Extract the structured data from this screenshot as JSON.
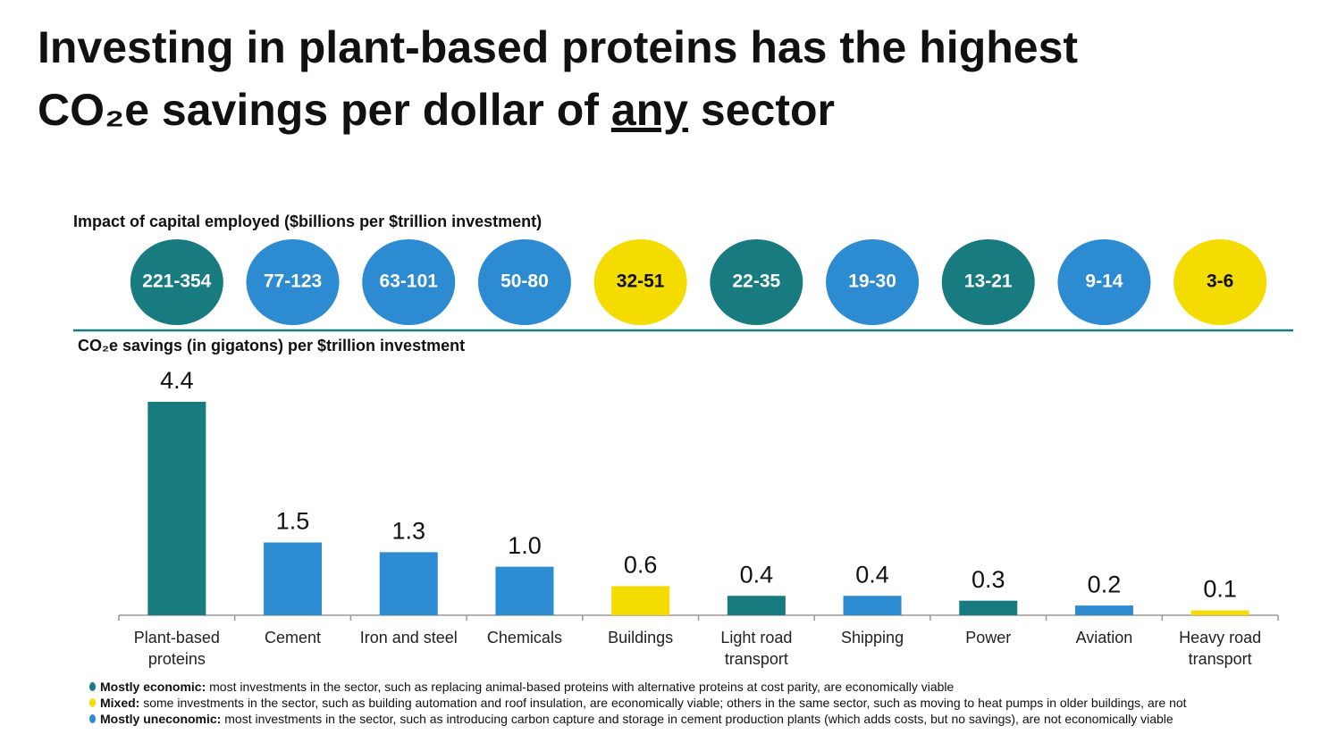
{
  "chart_data": {
    "type": "bar",
    "title": "Investing in plant-based proteins has the highest",
    "title_2": "CO₂e savings per dollar of ",
    "title_emphasis": "any",
    "title_end": " sector",
    "capital_label": "Impact of capital employed ($billions per $trillion investment)",
    "savings_label": "CO₂e savings (in gigatons) per $trillion investment",
    "categories": [
      "Plant-based proteins",
      "Cement",
      "Iron and steel",
      "Chemicals",
      "Buildings",
      "Light road transport",
      "Shipping",
      "Power",
      "Aviation",
      "Heavy road transport"
    ],
    "capital": [
      "221-354",
      "77-123",
      "63-101",
      "50-80",
      "32-51",
      "22-35",
      "19-30",
      "13-21",
      "9-14",
      "3-6"
    ],
    "values": [
      4.4,
      1.5,
      1.3,
      1.0,
      0.6,
      0.4,
      0.4,
      0.3,
      0.2,
      0.1
    ],
    "value_labels": [
      "4.4",
      "1.5",
      "1.3",
      "1.0",
      "0.6",
      "0.4",
      "0.4",
      "0.3",
      "0.2",
      "0.1"
    ],
    "colors": [
      "#177b80",
      "#2d8bd2",
      "#2d8bd2",
      "#2d8bd2",
      "#f5dc00",
      "#177b80",
      "#2d8bd2",
      "#177b80",
      "#2d8bd2",
      "#f5dc00"
    ],
    "legend": [
      {
        "label": "Mostly economic:",
        "text": " most investments in the sector, such as replacing animal-based proteins with alternative proteins at cost parity, are economically viable",
        "color": "#177b80"
      },
      {
        "label": "Mixed:",
        "text": " some investments in the sector, such as building automation and roof insulation, are economically viable; others in the same sector, such as moving to heat pumps in older buildings, are not",
        "color": "#f5dc00"
      },
      {
        "label": "Mostly uneconomic:",
        "text": " most investments in the sector, such as introducing carbon capture and storage in cement production plants (which adds costs, but no savings), are not economically viable",
        "color": "#2d8bd2"
      }
    ]
  }
}
